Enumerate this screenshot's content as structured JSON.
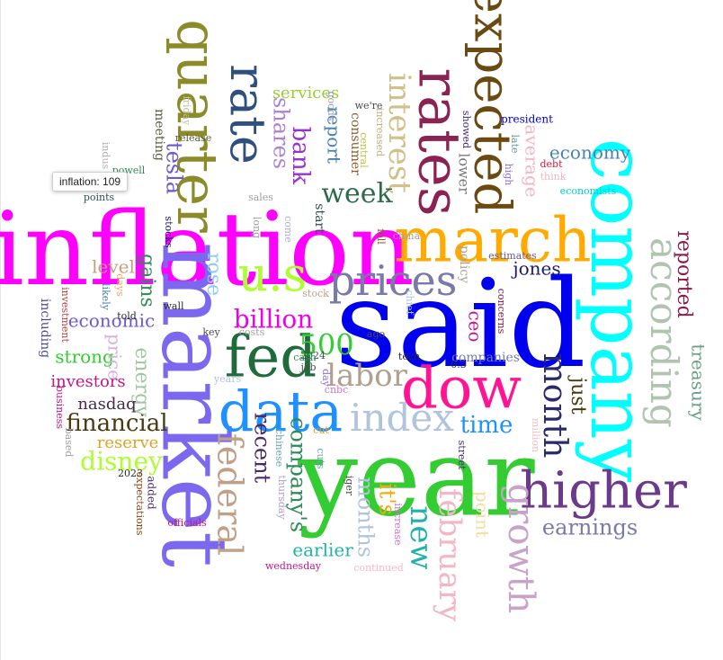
{
  "chart_data": {
    "type": "wordcloud",
    "words": [
      {
        "text": "inflation",
        "count": 109,
        "color": "#ff00ff"
      },
      {
        "text": "said",
        "color": "#0000ee"
      },
      {
        "text": "year",
        "color": "#33cc33"
      },
      {
        "text": "market",
        "color": "#7b68ee"
      },
      {
        "text": "company",
        "color": "#00ffff"
      },
      {
        "text": "march",
        "color": "#ffaa00"
      },
      {
        "text": "dow",
        "color": "#ff1493"
      },
      {
        "text": "data",
        "color": "#1e90ff"
      },
      {
        "text": "fed",
        "color": "#1f6b3a"
      },
      {
        "text": "higher",
        "color": "#6b3a8b"
      },
      {
        "text": "quarter",
        "color": "#8b8b2a"
      },
      {
        "text": "rates",
        "color": "#8b2252"
      },
      {
        "text": "expected",
        "color": "#6b4a12"
      },
      {
        "text": "rate",
        "color": "#2f4f7f"
      },
      {
        "text": "u.s",
        "color": "#adff2f"
      },
      {
        "text": "prices",
        "color": "#7a7aa8"
      },
      {
        "text": "index",
        "color": "#b0c4de"
      },
      {
        "text": "according",
        "color": "#b0c4b0"
      },
      {
        "text": "growth",
        "color": "#c8a2c8"
      },
      {
        "text": "federal",
        "color": "#c0a088"
      },
      {
        "text": "month",
        "color": "#2a2a6b"
      },
      {
        "text": "new",
        "color": "#20b2aa"
      },
      {
        "text": "interest",
        "color": "#d2c08a"
      },
      {
        "text": "february",
        "color": "#f4b6c2"
      },
      {
        "text": "labor",
        "color": "#b0a090"
      },
      {
        "text": "500",
        "color": "#32cd32"
      },
      {
        "text": "billion",
        "color": "#ee00ee"
      },
      {
        "text": "week",
        "color": "#2e6b4a"
      },
      {
        "text": "financial",
        "color": "#4a3a12"
      },
      {
        "text": "disney",
        "color": "#adff2f"
      },
      {
        "text": "earnings",
        "color": "#7a7aa8"
      },
      {
        "text": "time",
        "color": "#1e90ff"
      },
      {
        "text": "economy",
        "color": "#4682b4"
      },
      {
        "text": "months",
        "color": "#b0c4de"
      },
      {
        "text": "bank",
        "color": "#9932cc"
      },
      {
        "text": "shares",
        "color": "#b080d0"
      },
      {
        "text": "tesla",
        "color": "#6a5acd"
      },
      {
        "text": "rose",
        "color": "#87cefa"
      },
      {
        "text": "gains",
        "color": "#2e8b57"
      },
      {
        "text": "level",
        "color": "#c0a080"
      },
      {
        "text": "economic",
        "color": "#6a5acd"
      },
      {
        "text": "strong",
        "color": "#32cd32"
      },
      {
        "text": "investors",
        "color": "#c71585"
      },
      {
        "text": "price",
        "color": "#d8b0d8"
      },
      {
        "text": "energy",
        "color": "#a0c8a0"
      },
      {
        "text": "nasdaq",
        "color": "#4a2a4a"
      },
      {
        "text": "reserve",
        "color": "#daa520"
      },
      {
        "text": "recent",
        "color": "#4b2a6b"
      },
      {
        "text": "company's",
        "color": "#2e8b57"
      },
      {
        "text": "it's",
        "color": "#ffa500"
      },
      {
        "text": "earlier",
        "color": "#20b2aa"
      },
      {
        "text": "jones",
        "color": "#191970"
      },
      {
        "text": "ceo",
        "color": "#c71585"
      },
      {
        "text": "just",
        "color": "#4a3a12"
      },
      {
        "text": "point",
        "color": "#f0e0a0"
      },
      {
        "text": "reported",
        "color": "#8b1a4a"
      },
      {
        "text": "treasury",
        "color": "#6aa08a"
      },
      {
        "text": "report",
        "color": "#4682b4"
      },
      {
        "text": "services",
        "color": "#9acd32"
      },
      {
        "text": "average",
        "color": "#f4b6c2"
      },
      {
        "text": "lower",
        "color": "#7a7a7a"
      },
      {
        "text": "policy",
        "color": "#b0a090"
      },
      {
        "text": "companies",
        "color": "#7a7aa8"
      },
      {
        "text": "consumer",
        "color": "#8b5a2b"
      },
      {
        "text": "meeting",
        "color": "#5a5a3a"
      },
      {
        "text": "stocks",
        "color": "#191970"
      },
      {
        "text": "including",
        "color": "#4a4a8a"
      },
      {
        "text": "start",
        "color": "#2f4f4f"
      },
      {
        "text": "president",
        "color": "#0000cd"
      },
      {
        "text": "economists",
        "color": "#00ced1"
      },
      {
        "text": "estimates",
        "color": "#6a5a8a"
      },
      {
        "text": "debt",
        "color": "#dc143c"
      },
      {
        "text": "think",
        "color": "#f4b6c2"
      },
      {
        "text": "showed",
        "color": "#4a2a6b"
      },
      {
        "text": "late",
        "color": "#5f9ea0"
      },
      {
        "text": "high",
        "color": "#9370db"
      },
      {
        "text": "friday",
        "color": "#c0c0a0"
      },
      {
        "text": "release",
        "color": "#5a5a3a"
      },
      {
        "text": "goods",
        "color": "#a0a0c0"
      },
      {
        "text": "we're",
        "color": "#4a4a4a"
      },
      {
        "text": "increased",
        "color": "#c0b080"
      },
      {
        "text": "central",
        "color": "#c0c040"
      },
      {
        "text": "powell",
        "color": "#2e8b57"
      },
      {
        "text": "indus",
        "color": "#b0b0b0"
      },
      {
        "text": "points",
        "color": "#2f4f4f"
      },
      {
        "text": "sales",
        "color": "#a0a0a0"
      },
      {
        "text": "long",
        "color": "#a0a0a0"
      },
      {
        "text": "come",
        "color": "#b0b0d0"
      },
      {
        "text": "fell",
        "color": "#8b5a2b"
      },
      {
        "text": "china",
        "color": "#a0a0a0"
      },
      {
        "text": "days",
        "color": "#f4a460"
      },
      {
        "text": "likely",
        "color": "#4682b4"
      },
      {
        "text": "investment",
        "color": "#c04040"
      },
      {
        "text": "wall",
        "color": "#2a2a2a"
      },
      {
        "text": "told",
        "color": "#2a2a2a"
      },
      {
        "text": "key",
        "color": "#4a4a4a"
      },
      {
        "text": "costs",
        "color": "#a0a0a0"
      },
      {
        "text": "stock",
        "color": "#c0a080"
      },
      {
        "text": "ago",
        "color": "#4a4a4a"
      },
      {
        "text": "chief",
        "color": "#b0c4de"
      },
      {
        "text": "concerns",
        "color": "#8b1a4a"
      },
      {
        "text": "tech",
        "color": "#2a2a2a"
      },
      {
        "text": "2024",
        "color": "#4a4a4a"
      },
      {
        "text": "cash",
        "color": "#2e8b57"
      },
      {
        "text": "job",
        "color": "#4a4a4a"
      },
      {
        "text": "day",
        "color": "#9370db"
      },
      {
        "text": "0.3",
        "color": "#2a2a2a"
      },
      {
        "text": "years",
        "color": "#b0c4de"
      },
      {
        "text": "cnbc",
        "color": "#d070d0"
      },
      {
        "text": "business",
        "color": "#c71585"
      },
      {
        "text": "based",
        "color": "#a0a0a0"
      },
      {
        "text": "2023",
        "color": "#2a2a2a"
      },
      {
        "text": "added",
        "color": "#4a2a6b"
      },
      {
        "text": "expectations",
        "color": "#8b4513"
      },
      {
        "text": "officials",
        "color": "#c71585"
      },
      {
        "text": "chinese",
        "color": "#6aa0c0"
      },
      {
        "text": "thursday",
        "color": "#b0a0c0"
      },
      {
        "text": "cut",
        "color": "#daa520"
      },
      {
        "text": "cuts",
        "color": "#6aa0c0"
      },
      {
        "text": "wednesday",
        "color": "#c71585"
      },
      {
        "text": "continued",
        "color": "#f4b6c2"
      },
      {
        "text": "iger",
        "color": "#4a4a4a"
      },
      {
        "text": "increase",
        "color": "#d070d0"
      },
      {
        "text": "street",
        "color": "#4a2a6b"
      },
      {
        "text": "million",
        "color": "#f4c0c0"
      }
    ]
  },
  "tooltip": {
    "text": "inflation: 109"
  }
}
